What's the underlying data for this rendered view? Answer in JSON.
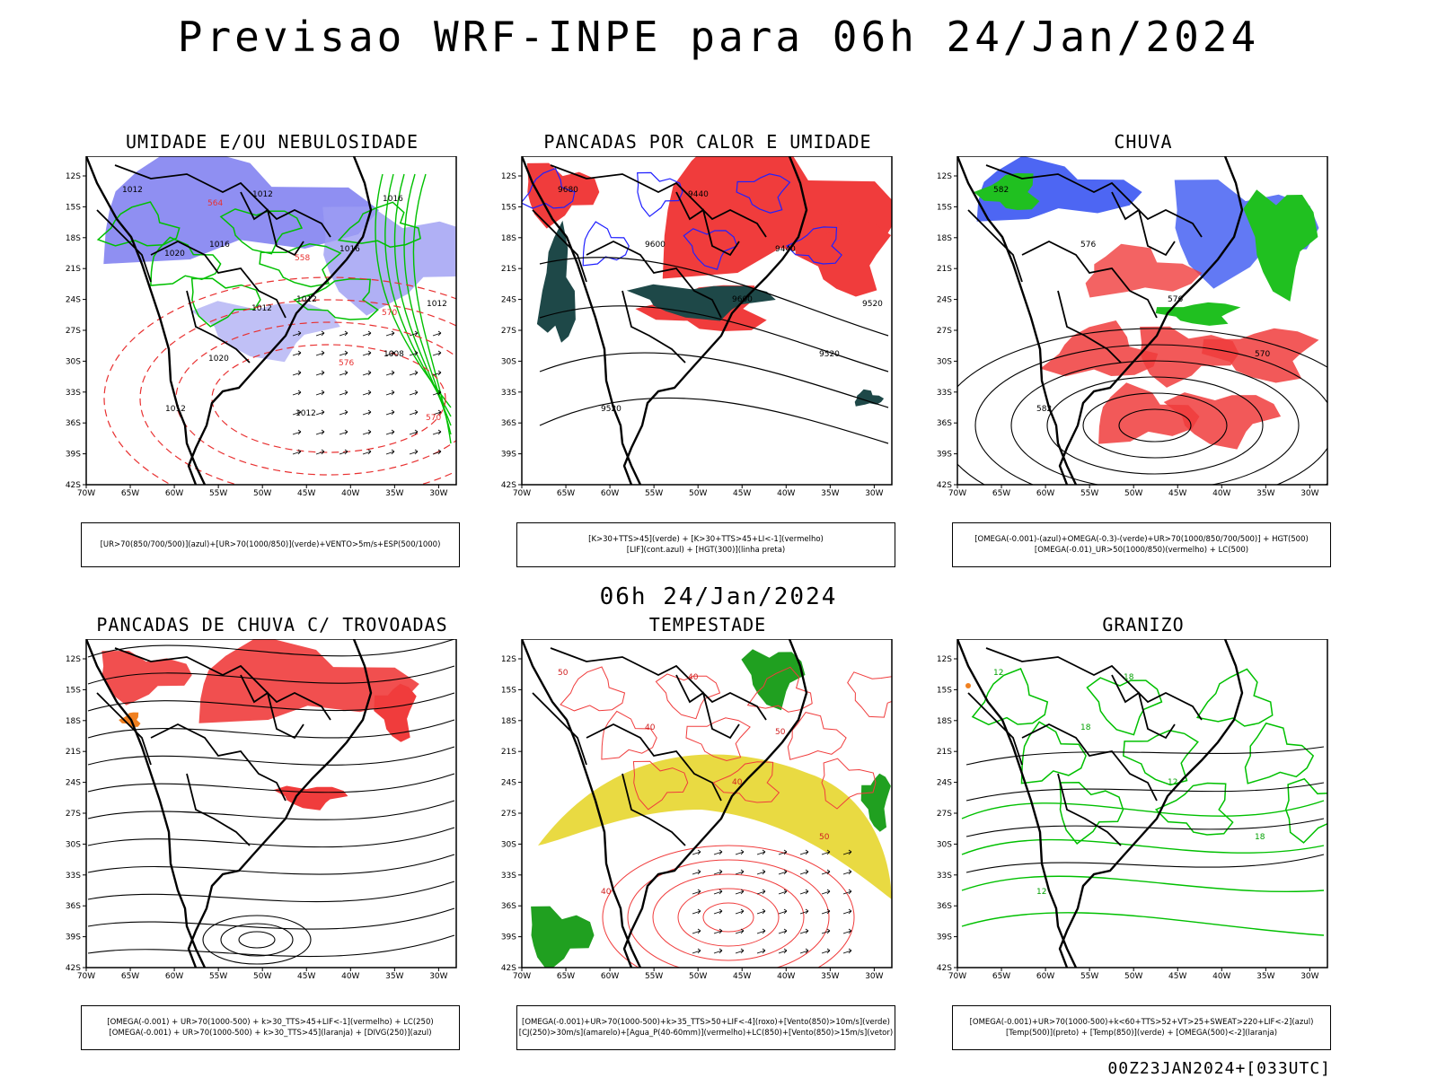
{
  "header": {
    "title": "Previsao WRF-INPE  para 06h 24/Jan/2024",
    "mid_date": "06h 24/Jan/2024",
    "footer": "00Z23JAN2024+[033UTC]"
  },
  "axes": {
    "lat_ticks": [
      "12S",
      "15S",
      "18S",
      "21S",
      "24S",
      "27S",
      "30S",
      "33S",
      "36S",
      "39S",
      "42S"
    ],
    "lon_ticks": [
      "70W",
      "65W",
      "60W",
      "55W",
      "50W",
      "45W",
      "40W",
      "35W",
      "30W"
    ]
  },
  "colors": {
    "blue_fill": "#7b7bf0",
    "red_fill": "#f03c3c",
    "green_line": "#00c000",
    "yellow_fill": "#e8d838",
    "dark_teal": "#1e4848"
  },
  "panels": [
    {
      "title": "UMIDADE E/OU NEBULOSIDADE",
      "legend": [
        "[UR>70(850/700/500)](azul)+[UR>70(1000/850)](verde)+VENTO>5m/s+ESP(500/1000)"
      ],
      "contour_labels": [
        "1012",
        "1016",
        "1012",
        "1008",
        "1012",
        "1012",
        "1016",
        "1012",
        "1020",
        "1012",
        "1016",
        "1020",
        "1012",
        "576",
        "570",
        "564",
        "558",
        "570"
      ]
    },
    {
      "title": "PANCADAS POR CALOR E UMIDADE",
      "legend": [
        "[K>30+TTS>45](verde) + [K>30+TTS>45+LI<-1](vermelho)",
        "[LIF](cont.azul) + [HGT(300)](linha preta)"
      ],
      "contour_labels": [
        "9680",
        "9600",
        "9600",
        "9520",
        "9520",
        "9440",
        "9440",
        "9520"
      ]
    },
    {
      "title": "CHUVA",
      "legend": [
        "[OMEGA(-0.001)-(azul)+OMEGA(-0.3)-(verde)+UR>70(1000/850/700/500)] + HGT(500)",
        "[OMEGA(-0.01)_UR>50(1000/850)(vermelho) + LC(500)"
      ],
      "contour_labels": [
        "582",
        "576",
        "576",
        "570",
        "582"
      ]
    },
    {
      "title": "PANCADAS DE CHUVA C/ TROVOADAS",
      "legend": [
        "[OMEGA(-0.001) + UR>70(1000-500) + k>30_TTS>45+LIF<-1](vermelho) + LC(250)",
        "[OMEGA(-0.001) + UR>70(1000-500) + k>30_TTS>45](laranja) + [DIVG(250)](azul)"
      ],
      "contour_labels": []
    },
    {
      "title": "TEMPESTADE",
      "legend": [
        "[OMEGA(-0.001)+UR>70(1000-500)+k>35_TTS>50+LIF<-4](roxo)+[Vento(850)>10m/s](verde)",
        "[CJ(250)>30m/s](amarelo)+[Agua_P(40-60mm)](vermelho)+LC(850)+[Vento(850)>15m/s](vetor)"
      ],
      "contour_labels": [
        "50",
        "40",
        "40",
        "50",
        "40",
        "40",
        "50"
      ]
    },
    {
      "title": "GRANIZO",
      "legend": [
        "[OMEGA(-0.001)+UR>70(1000-500)+k<60+TTS>52+VT>25+SWEAT>220+LIF<-2](azul)",
        "[Temp(500)](preto) + [Temp(850)](verde) + [OMEGA(500)<-2](laranja)"
      ],
      "contour_labels": [
        "12",
        "18",
        "12",
        "18",
        "12",
        "18"
      ]
    }
  ]
}
